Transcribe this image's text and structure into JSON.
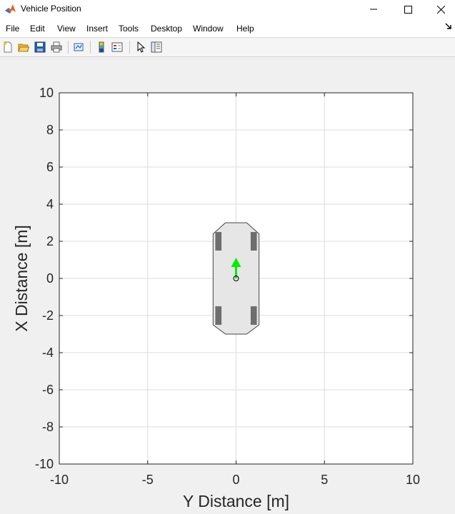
{
  "window": {
    "title": "Vehicle Position",
    "controls": {
      "minimize_icon": "minimize-icon",
      "maximize_icon": "maximize-icon",
      "close_icon": "close-icon"
    }
  },
  "menubar": {
    "items": [
      {
        "label": "File"
      },
      {
        "label": "Edit"
      },
      {
        "label": "View"
      },
      {
        "label": "Insert"
      },
      {
        "label": "Tools"
      },
      {
        "label": "Desktop"
      },
      {
        "label": "Window"
      },
      {
        "label": "Help"
      }
    ]
  },
  "toolbar": {
    "buttons": [
      {
        "icon": "new-figure-icon"
      },
      {
        "icon": "open-file-icon"
      },
      {
        "icon": "save-icon"
      },
      {
        "icon": "print-icon"
      },
      {
        "icon": "link-plot-icon"
      },
      {
        "icon": "insert-colorbar-icon"
      },
      {
        "icon": "insert-legend-icon"
      },
      {
        "icon": "edit-plot-pointer-icon"
      },
      {
        "icon": "property-inspector-icon"
      }
    ]
  },
  "colors": {
    "axes_background": "#ffffff",
    "grid": "#dcdcdc",
    "vehicle_body": "#e6e6e6",
    "vehicle_outline": "#444444",
    "wheels": "#6e6e6e",
    "heading_arrow": "#00ee00"
  },
  "chart_data": {
    "type": "scatter",
    "title": "",
    "xlabel": "Y Distance [m]",
    "ylabel": "X Distance [m]",
    "xlim": [
      -10,
      10
    ],
    "ylim": [
      -10,
      10
    ],
    "xticks": [
      -10,
      -5,
      0,
      5,
      10
    ],
    "yticks": [
      -10,
      -8,
      -6,
      -4,
      -2,
      0,
      2,
      4,
      6,
      8,
      10
    ],
    "grid": true,
    "vehicle": {
      "origin": {
        "x": 0,
        "y": 0
      },
      "heading_deg": 90,
      "length_m": 6.0,
      "front_m": 3.0,
      "rear_m": -3.0,
      "width_m": 2.6,
      "wheel_positions_m": [
        {
          "y": -1.0,
          "x": 2.0
        },
        {
          "y": 1.0,
          "x": 2.0
        },
        {
          "y": -1.0,
          "x": -2.0
        },
        {
          "y": 1.0,
          "x": -2.0
        }
      ],
      "heading_arrow_length_m": 1.0
    }
  }
}
